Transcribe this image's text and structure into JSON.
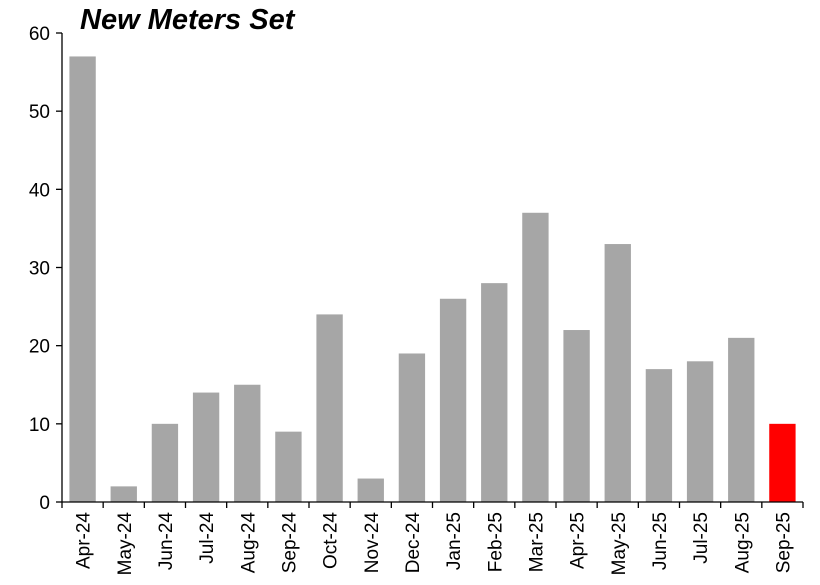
{
  "chart_data": {
    "type": "bar",
    "title": "New Meters Set",
    "categories": [
      "Apr-24",
      "May-24",
      "Jun-24",
      "Jul-24",
      "Aug-24",
      "Sep-24",
      "Oct-24",
      "Nov-24",
      "Dec-24",
      "Jan-25",
      "Feb-25",
      "Mar-25",
      "Apr-25",
      "May-25",
      "Jun-25",
      "Jul-25",
      "Aug-25",
      "Sep-25"
    ],
    "values": [
      57,
      2,
      10,
      14,
      15,
      9,
      24,
      3,
      19,
      26,
      28,
      37,
      22,
      33,
      17,
      18,
      21,
      10
    ],
    "highlight_index": 17,
    "ylim": [
      0,
      60
    ],
    "yticks": [
      0,
      10,
      20,
      30,
      40,
      50,
      60
    ],
    "grid": false,
    "colors": {
      "bar": "#a6a6a6",
      "highlight": "#ff0000",
      "axis": "#000000"
    }
  }
}
